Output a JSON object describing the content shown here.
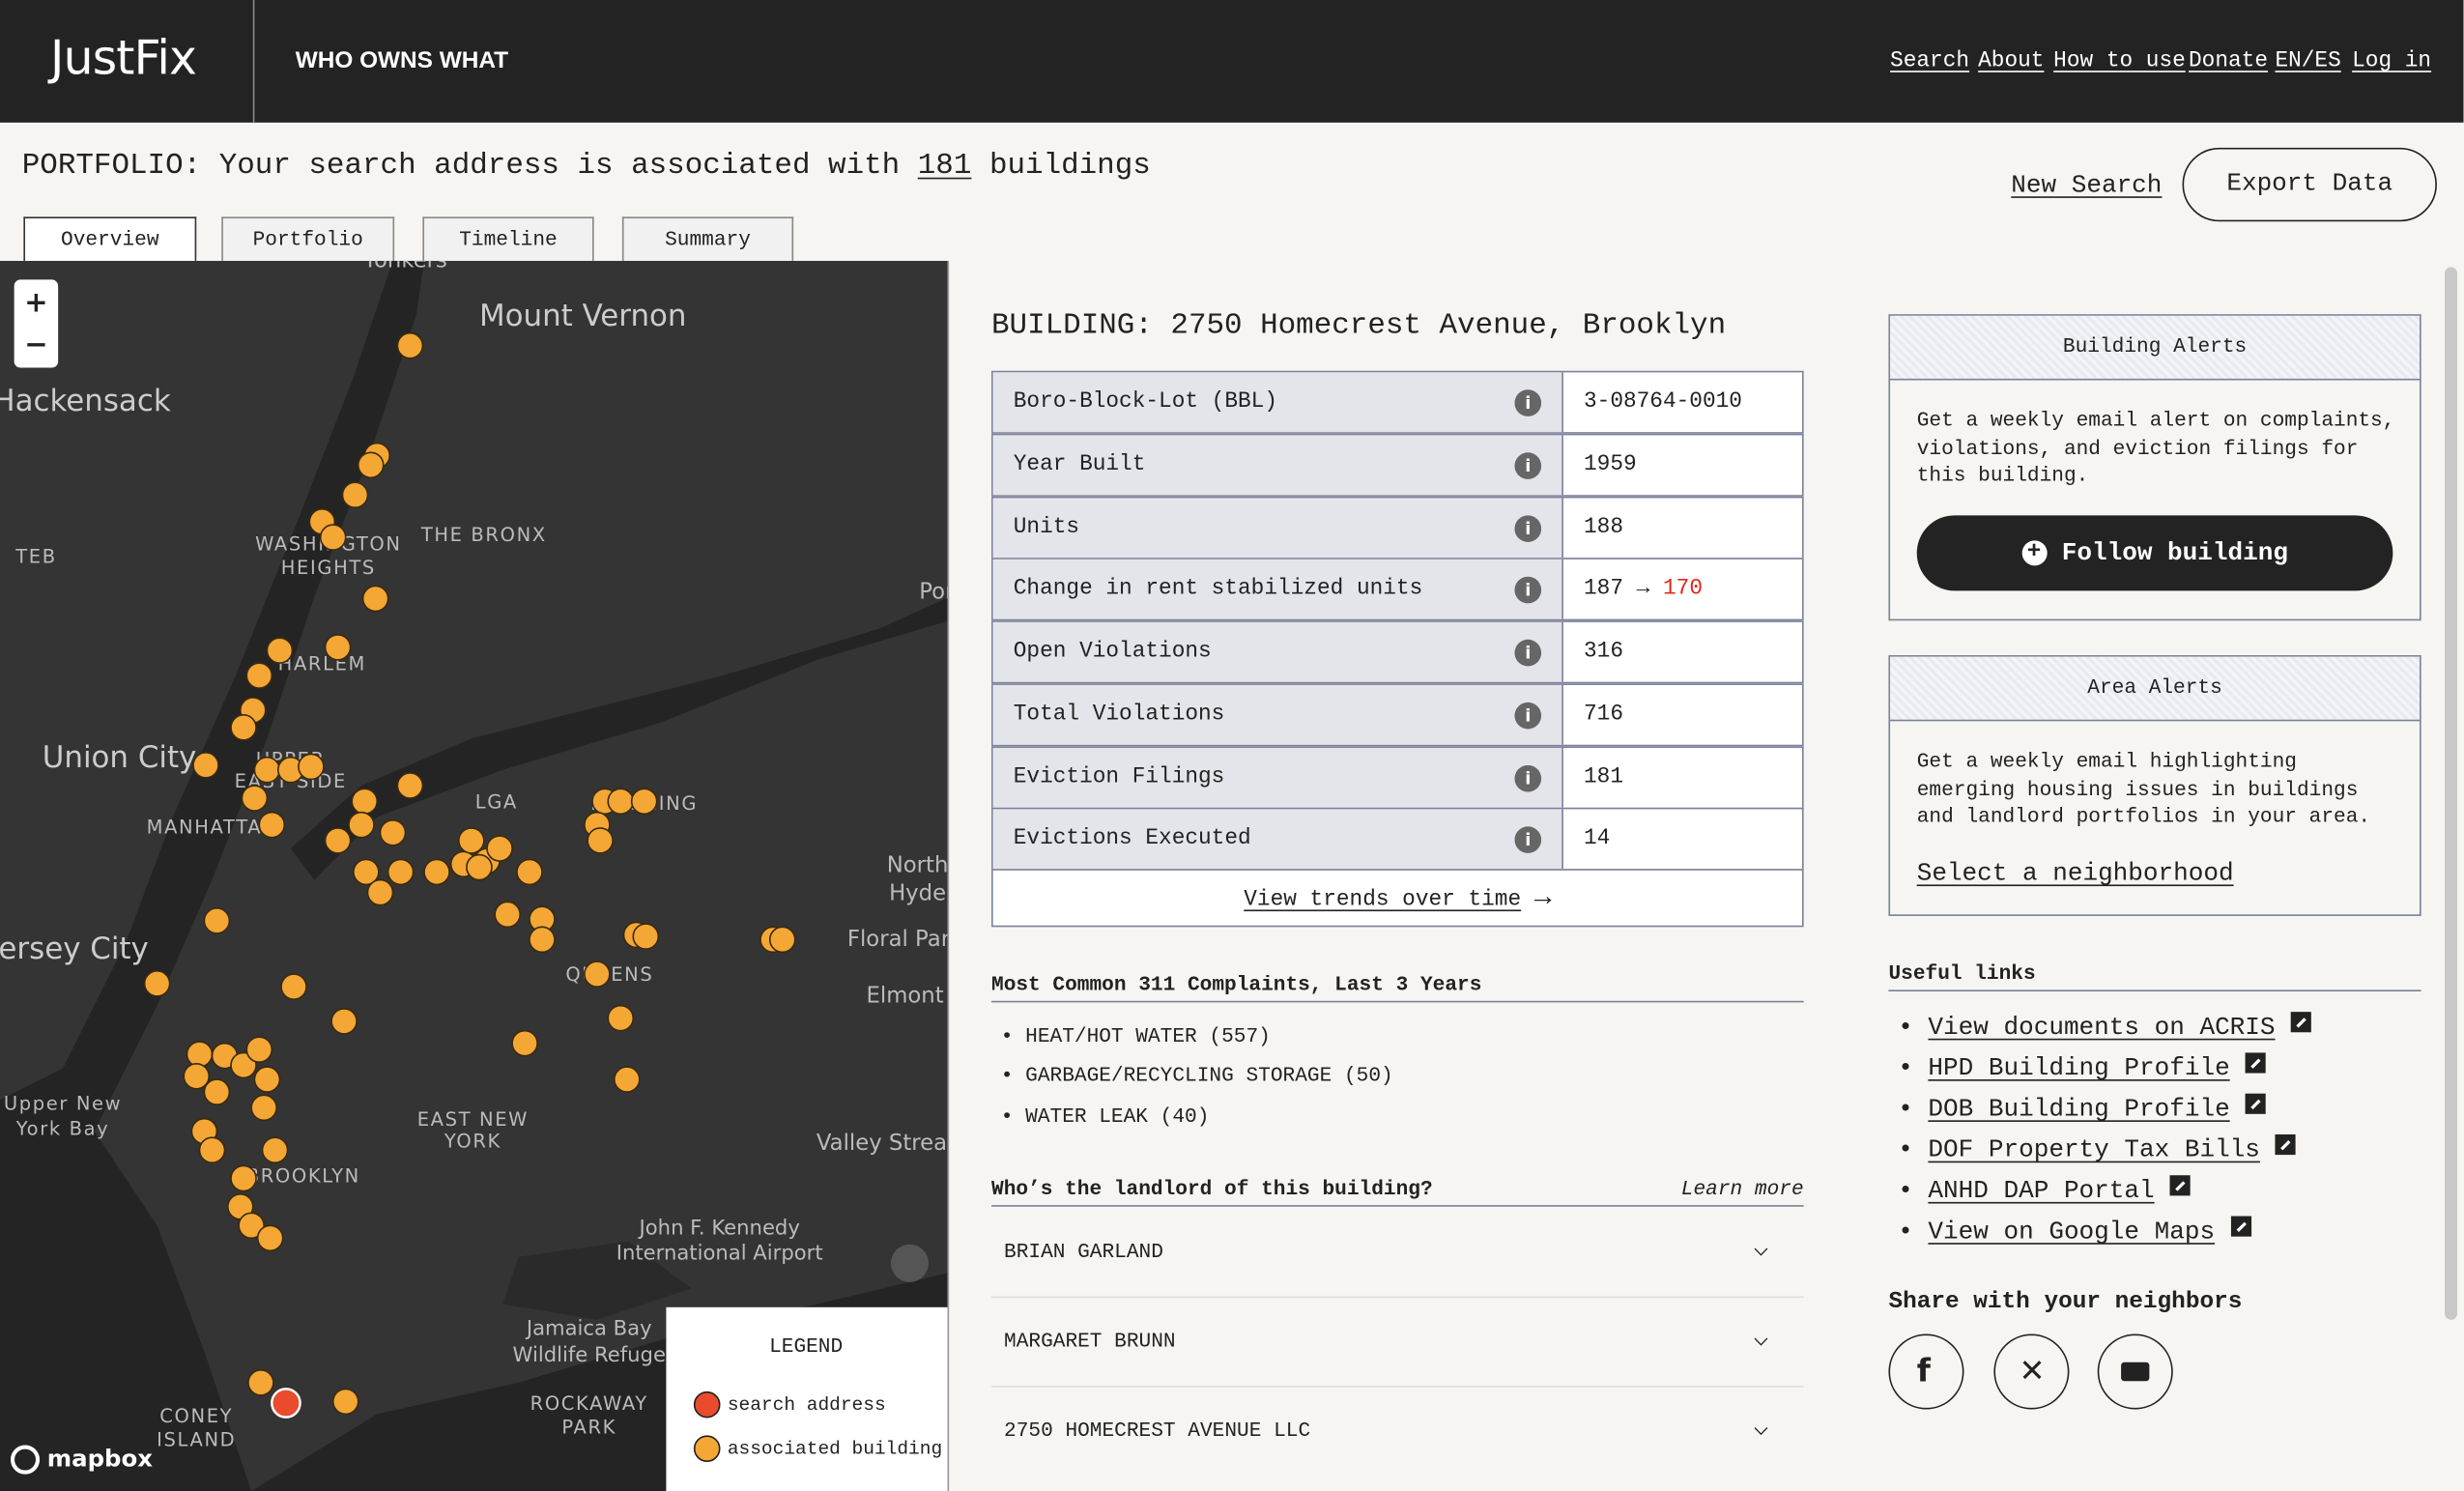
{
  "header": {
    "logo": "JustFix",
    "app_name": "WHO OWNS WHAT",
    "nav": [
      "Search",
      "About",
      "How to use",
      "Donate",
      "EN/ES",
      "Log in"
    ]
  },
  "portfolio": {
    "prefix": "PORTFOLIO: Your search address is associated with",
    "count": 181,
    "suffix": "buildings",
    "new_search": "New Search",
    "export": "Export Data"
  },
  "tabs": [
    "Overview",
    "Portfolio",
    "Timeline",
    "Summary"
  ],
  "map": {
    "zoom_in": "+",
    "zoom_out": "−",
    "places": [
      "Yonkers",
      "Mount Vernon",
      "Hackensack",
      "TEB",
      "WASHINGTON",
      "HEIGHTS",
      "THE BRONX",
      "HARLEM",
      "Port Washington",
      "Union City",
      "UPPER",
      "EAST SIDE",
      "MANHATTAN",
      "LGA",
      "FLUSHING",
      "North",
      "Hyde",
      "Jersey City",
      "Floral Park",
      "Elmont",
      "QUEENS",
      "Upper New",
      "York Bay",
      "EAST NEW",
      "YORK",
      "Valley Stream",
      "BROOKLYN",
      "John F. Kennedy",
      "International Airport",
      "Jamaica Bay",
      "Wildlife Refuge",
      "ROCKAWAY",
      "PARK",
      "CONEY",
      "ISLAND"
    ],
    "legend": {
      "title": "LEGEND",
      "items": [
        "search address",
        "associated building"
      ]
    },
    "attribution": "mapbox"
  },
  "building": {
    "title": "BUILDING: 2750 Homecrest Avenue, Brooklyn",
    "rows": [
      {
        "label": "Boro-Block-Lot (BBL)",
        "value": "3-08764-0010"
      },
      {
        "label": "Year Built",
        "value": 1959
      },
      {
        "label": "Units",
        "value": 188
      },
      {
        "label": "Change in rent stabilized units",
        "value": {
          "from": 187,
          "arrow": "→",
          "to": 170
        }
      },
      {
        "label": "Open Violations",
        "value": 316
      },
      {
        "label": "Total Violations",
        "value": 716
      },
      {
        "label": "Eviction Filings",
        "value": 181
      },
      {
        "label": "Evictions Executed",
        "value": 14
      }
    ],
    "trends_link": "View trends over time"
  },
  "complaints": {
    "title": "Most Common 311 Complaints, Last 3 Years",
    "items": [
      "HEAT/HOT WATER (557)",
      "GARBAGE/RECYCLING STORAGE (50)",
      "WATER LEAK (40)"
    ]
  },
  "landlord": {
    "title": "Who’s the landlord of this building?",
    "learn_more": "Learn more",
    "names": [
      "BRIAN GARLAND",
      "MARGARET BRUNN",
      "2750 HOMECREST AVENUE LLC"
    ]
  },
  "building_alerts": {
    "title": "Building Alerts",
    "text": "Get a weekly email alert on complaints, violations, and eviction filings for this building.",
    "button": "Follow building"
  },
  "area_alerts": {
    "title": "Area Alerts",
    "text": "Get a weekly email highlighting emerging housing issues in buildings and landlord portfolios in your area.",
    "link": "Select a neighborhood"
  },
  "useful_links": {
    "title": "Useful links",
    "items": [
      "View documents on ACRIS",
      "HPD Building Profile",
      "DOB Building Profile",
      "DOF Property Tax Bills",
      "ANHD DAP Portal",
      "View on Google Maps"
    ]
  },
  "share": {
    "title": "Share with your neighbors"
  }
}
